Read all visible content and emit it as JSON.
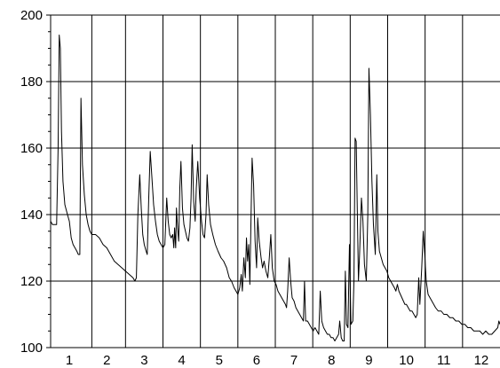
{
  "chart_data": {
    "type": "line",
    "title": "",
    "xlabel": "",
    "ylabel": "",
    "xlim": [
      0.5,
      12.5
    ],
    "ylim": [
      100,
      200
    ],
    "x_tick_labels": [
      "1",
      "2",
      "3",
      "4",
      "5",
      "6",
      "7",
      "8",
      "9",
      "10",
      "11",
      "12"
    ],
    "y_tick_labels": [
      "100",
      "120",
      "140",
      "160",
      "180",
      "200"
    ],
    "y_tick_values": [
      100,
      120,
      140,
      160,
      180,
      200
    ],
    "vertical_gridlines_at": [
      1.6,
      2.5,
      3.5,
      4.5,
      5.5,
      6.5,
      7.5,
      8.5,
      9.5,
      10.5,
      11.5
    ],
    "grid": true,
    "line_color": "#000000",
    "series": [
      {
        "name": "",
        "points": [
          [
            0.5,
            138
          ],
          [
            0.55,
            137
          ],
          [
            0.6,
            137
          ],
          [
            0.66,
            137
          ],
          [
            0.7,
            160
          ],
          [
            0.73,
            194
          ],
          [
            0.76,
            190
          ],
          [
            0.79,
            165
          ],
          [
            0.83,
            150
          ],
          [
            0.88,
            143
          ],
          [
            0.95,
            140
          ],
          [
            1.0,
            138
          ],
          [
            1.05,
            133
          ],
          [
            1.1,
            131
          ],
          [
            1.15,
            130
          ],
          [
            1.2,
            129
          ],
          [
            1.24,
            128
          ],
          [
            1.28,
            128
          ],
          [
            1.31,
            175
          ],
          [
            1.35,
            155
          ],
          [
            1.4,
            146
          ],
          [
            1.45,
            140
          ],
          [
            1.5,
            137
          ],
          [
            1.55,
            135
          ],
          [
            1.6,
            134
          ],
          [
            1.7,
            134
          ],
          [
            1.8,
            133
          ],
          [
            1.9,
            131
          ],
          [
            2.0,
            130
          ],
          [
            2.1,
            128
          ],
          [
            2.2,
            126
          ],
          [
            2.3,
            125
          ],
          [
            2.4,
            124
          ],
          [
            2.5,
            123
          ],
          [
            2.6,
            122
          ],
          [
            2.7,
            121
          ],
          [
            2.75,
            120
          ],
          [
            2.79,
            121
          ],
          [
            2.83,
            140
          ],
          [
            2.88,
            152
          ],
          [
            2.92,
            142
          ],
          [
            2.96,
            134
          ],
          [
            3.0,
            131
          ],
          [
            3.05,
            129
          ],
          [
            3.08,
            128
          ],
          [
            3.12,
            145
          ],
          [
            3.16,
            159
          ],
          [
            3.2,
            152
          ],
          [
            3.25,
            143
          ],
          [
            3.3,
            138
          ],
          [
            3.35,
            134
          ],
          [
            3.4,
            132
          ],
          [
            3.45,
            131
          ],
          [
            3.5,
            130
          ],
          [
            3.55,
            131
          ],
          [
            3.6,
            145
          ],
          [
            3.64,
            138
          ],
          [
            3.68,
            134
          ],
          [
            3.72,
            133
          ],
          [
            3.76,
            134
          ],
          [
            3.79,
            130
          ],
          [
            3.81,
            136
          ],
          [
            3.84,
            130
          ],
          [
            3.86,
            142
          ],
          [
            3.89,
            136
          ],
          [
            3.92,
            132
          ],
          [
            3.95,
            148
          ],
          [
            3.98,
            156
          ],
          [
            4.02,
            142
          ],
          [
            4.06,
            137
          ],
          [
            4.1,
            135
          ],
          [
            4.14,
            133
          ],
          [
            4.18,
            132
          ],
          [
            4.22,
            136
          ],
          [
            4.25,
            145
          ],
          [
            4.28,
            161
          ],
          [
            4.32,
            144
          ],
          [
            4.36,
            138
          ],
          [
            4.39,
            148
          ],
          [
            4.43,
            156
          ],
          [
            4.48,
            145
          ],
          [
            4.53,
            138
          ],
          [
            4.57,
            134
          ],
          [
            4.61,
            133
          ],
          [
            4.65,
            140
          ],
          [
            4.68,
            152
          ],
          [
            4.72,
            143
          ],
          [
            4.77,
            137
          ],
          [
            4.83,
            134
          ],
          [
            4.9,
            131
          ],
          [
            4.97,
            129
          ],
          [
            5.05,
            127
          ],
          [
            5.12,
            126
          ],
          [
            5.2,
            124
          ],
          [
            5.27,
            121
          ],
          [
            5.33,
            120
          ],
          [
            5.4,
            118
          ],
          [
            5.45,
            117
          ],
          [
            5.5,
            116
          ],
          [
            5.55,
            118
          ],
          [
            5.59,
            122
          ],
          [
            5.62,
            117
          ],
          [
            5.66,
            127
          ],
          [
            5.7,
            121
          ],
          [
            5.73,
            133
          ],
          [
            5.76,
            126
          ],
          [
            5.79,
            131
          ],
          [
            5.82,
            119
          ],
          [
            5.85,
            138
          ],
          [
            5.88,
            157
          ],
          [
            5.92,
            149
          ],
          [
            5.96,
            132
          ],
          [
            6.0,
            124
          ],
          [
            6.03,
            139
          ],
          [
            6.07,
            132
          ],
          [
            6.12,
            127
          ],
          [
            6.16,
            124
          ],
          [
            6.2,
            126
          ],
          [
            6.25,
            123
          ],
          [
            6.3,
            121
          ],
          [
            6.34,
            127
          ],
          [
            6.38,
            134
          ],
          [
            6.42,
            124
          ],
          [
            6.47,
            120
          ],
          [
            6.52,
            119
          ],
          [
            6.57,
            117
          ],
          [
            6.62,
            116
          ],
          [
            6.67,
            115
          ],
          [
            6.72,
            114
          ],
          [
            6.77,
            113
          ],
          [
            6.8,
            112
          ],
          [
            6.83,
            117
          ],
          [
            6.87,
            127
          ],
          [
            6.91,
            120
          ],
          [
            6.95,
            115
          ],
          [
            7.0,
            114
          ],
          [
            7.05,
            112
          ],
          [
            7.1,
            111
          ],
          [
            7.15,
            110
          ],
          [
            7.2,
            109
          ],
          [
            7.25,
            108
          ],
          [
            7.28,
            120
          ],
          [
            7.31,
            108
          ],
          [
            7.36,
            108
          ],
          [
            7.41,
            107
          ],
          [
            7.46,
            106
          ],
          [
            7.51,
            105
          ],
          [
            7.56,
            106
          ],
          [
            7.61,
            105
          ],
          [
            7.66,
            104
          ],
          [
            7.7,
            117
          ],
          [
            7.74,
            108
          ],
          [
            7.79,
            106
          ],
          [
            7.84,
            105
          ],
          [
            7.89,
            104
          ],
          [
            7.94,
            104
          ],
          [
            7.99,
            103
          ],
          [
            8.04,
            103
          ],
          [
            8.09,
            102
          ],
          [
            8.14,
            103
          ],
          [
            8.19,
            104
          ],
          [
            8.22,
            108
          ],
          [
            8.26,
            103
          ],
          [
            8.3,
            102
          ],
          [
            8.34,
            102
          ],
          [
            8.37,
            123
          ],
          [
            8.4,
            107
          ],
          [
            8.44,
            106
          ],
          [
            8.48,
            131
          ],
          [
            8.52,
            107
          ],
          [
            8.57,
            108
          ],
          [
            8.6,
            120
          ],
          [
            8.63,
            163
          ],
          [
            8.66,
            162
          ],
          [
            8.69,
            141
          ],
          [
            8.72,
            120
          ],
          [
            8.75,
            128
          ],
          [
            8.8,
            145
          ],
          [
            8.84,
            138
          ],
          [
            8.88,
            125
          ],
          [
            8.93,
            120
          ],
          [
            8.97,
            140
          ],
          [
            9.0,
            184
          ],
          [
            9.04,
            170
          ],
          [
            9.08,
            150
          ],
          [
            9.12,
            137
          ],
          [
            9.17,
            128
          ],
          [
            9.21,
            152
          ],
          [
            9.24,
            135
          ],
          [
            9.28,
            129
          ],
          [
            9.33,
            127
          ],
          [
            9.38,
            125
          ],
          [
            9.43,
            124
          ],
          [
            9.48,
            123
          ],
          [
            9.53,
            121
          ],
          [
            9.58,
            120
          ],
          [
            9.63,
            119
          ],
          [
            9.68,
            118
          ],
          [
            9.72,
            117
          ],
          [
            9.76,
            119
          ],
          [
            9.8,
            117
          ],
          [
            9.84,
            116
          ],
          [
            9.88,
            115
          ],
          [
            9.92,
            114
          ],
          [
            9.96,
            113
          ],
          [
            10.0,
            113
          ],
          [
            10.05,
            112
          ],
          [
            10.1,
            111
          ],
          [
            10.15,
            111
          ],
          [
            10.2,
            110
          ],
          [
            10.25,
            109
          ],
          [
            10.29,
            110
          ],
          [
            10.33,
            121
          ],
          [
            10.36,
            113
          ],
          [
            10.41,
            124
          ],
          [
            10.45,
            135
          ],
          [
            10.49,
            128
          ],
          [
            10.53,
            120
          ],
          [
            10.58,
            116
          ],
          [
            10.63,
            115
          ],
          [
            10.68,
            114
          ],
          [
            10.73,
            113
          ],
          [
            10.78,
            112
          ],
          [
            10.85,
            111
          ],
          [
            10.93,
            111
          ],
          [
            11.0,
            110
          ],
          [
            11.08,
            110
          ],
          [
            11.16,
            109
          ],
          [
            11.24,
            109
          ],
          [
            11.32,
            108
          ],
          [
            11.4,
            108
          ],
          [
            11.48,
            107
          ],
          [
            11.56,
            107
          ],
          [
            11.64,
            106
          ],
          [
            11.72,
            106
          ],
          [
            11.8,
            105
          ],
          [
            11.88,
            105
          ],
          [
            11.96,
            105
          ],
          [
            12.04,
            104
          ],
          [
            12.12,
            105
          ],
          [
            12.2,
            104
          ],
          [
            12.28,
            104
          ],
          [
            12.36,
            105
          ],
          [
            12.44,
            106
          ],
          [
            12.47,
            108
          ],
          [
            12.5,
            107
          ]
        ]
      }
    ]
  }
}
